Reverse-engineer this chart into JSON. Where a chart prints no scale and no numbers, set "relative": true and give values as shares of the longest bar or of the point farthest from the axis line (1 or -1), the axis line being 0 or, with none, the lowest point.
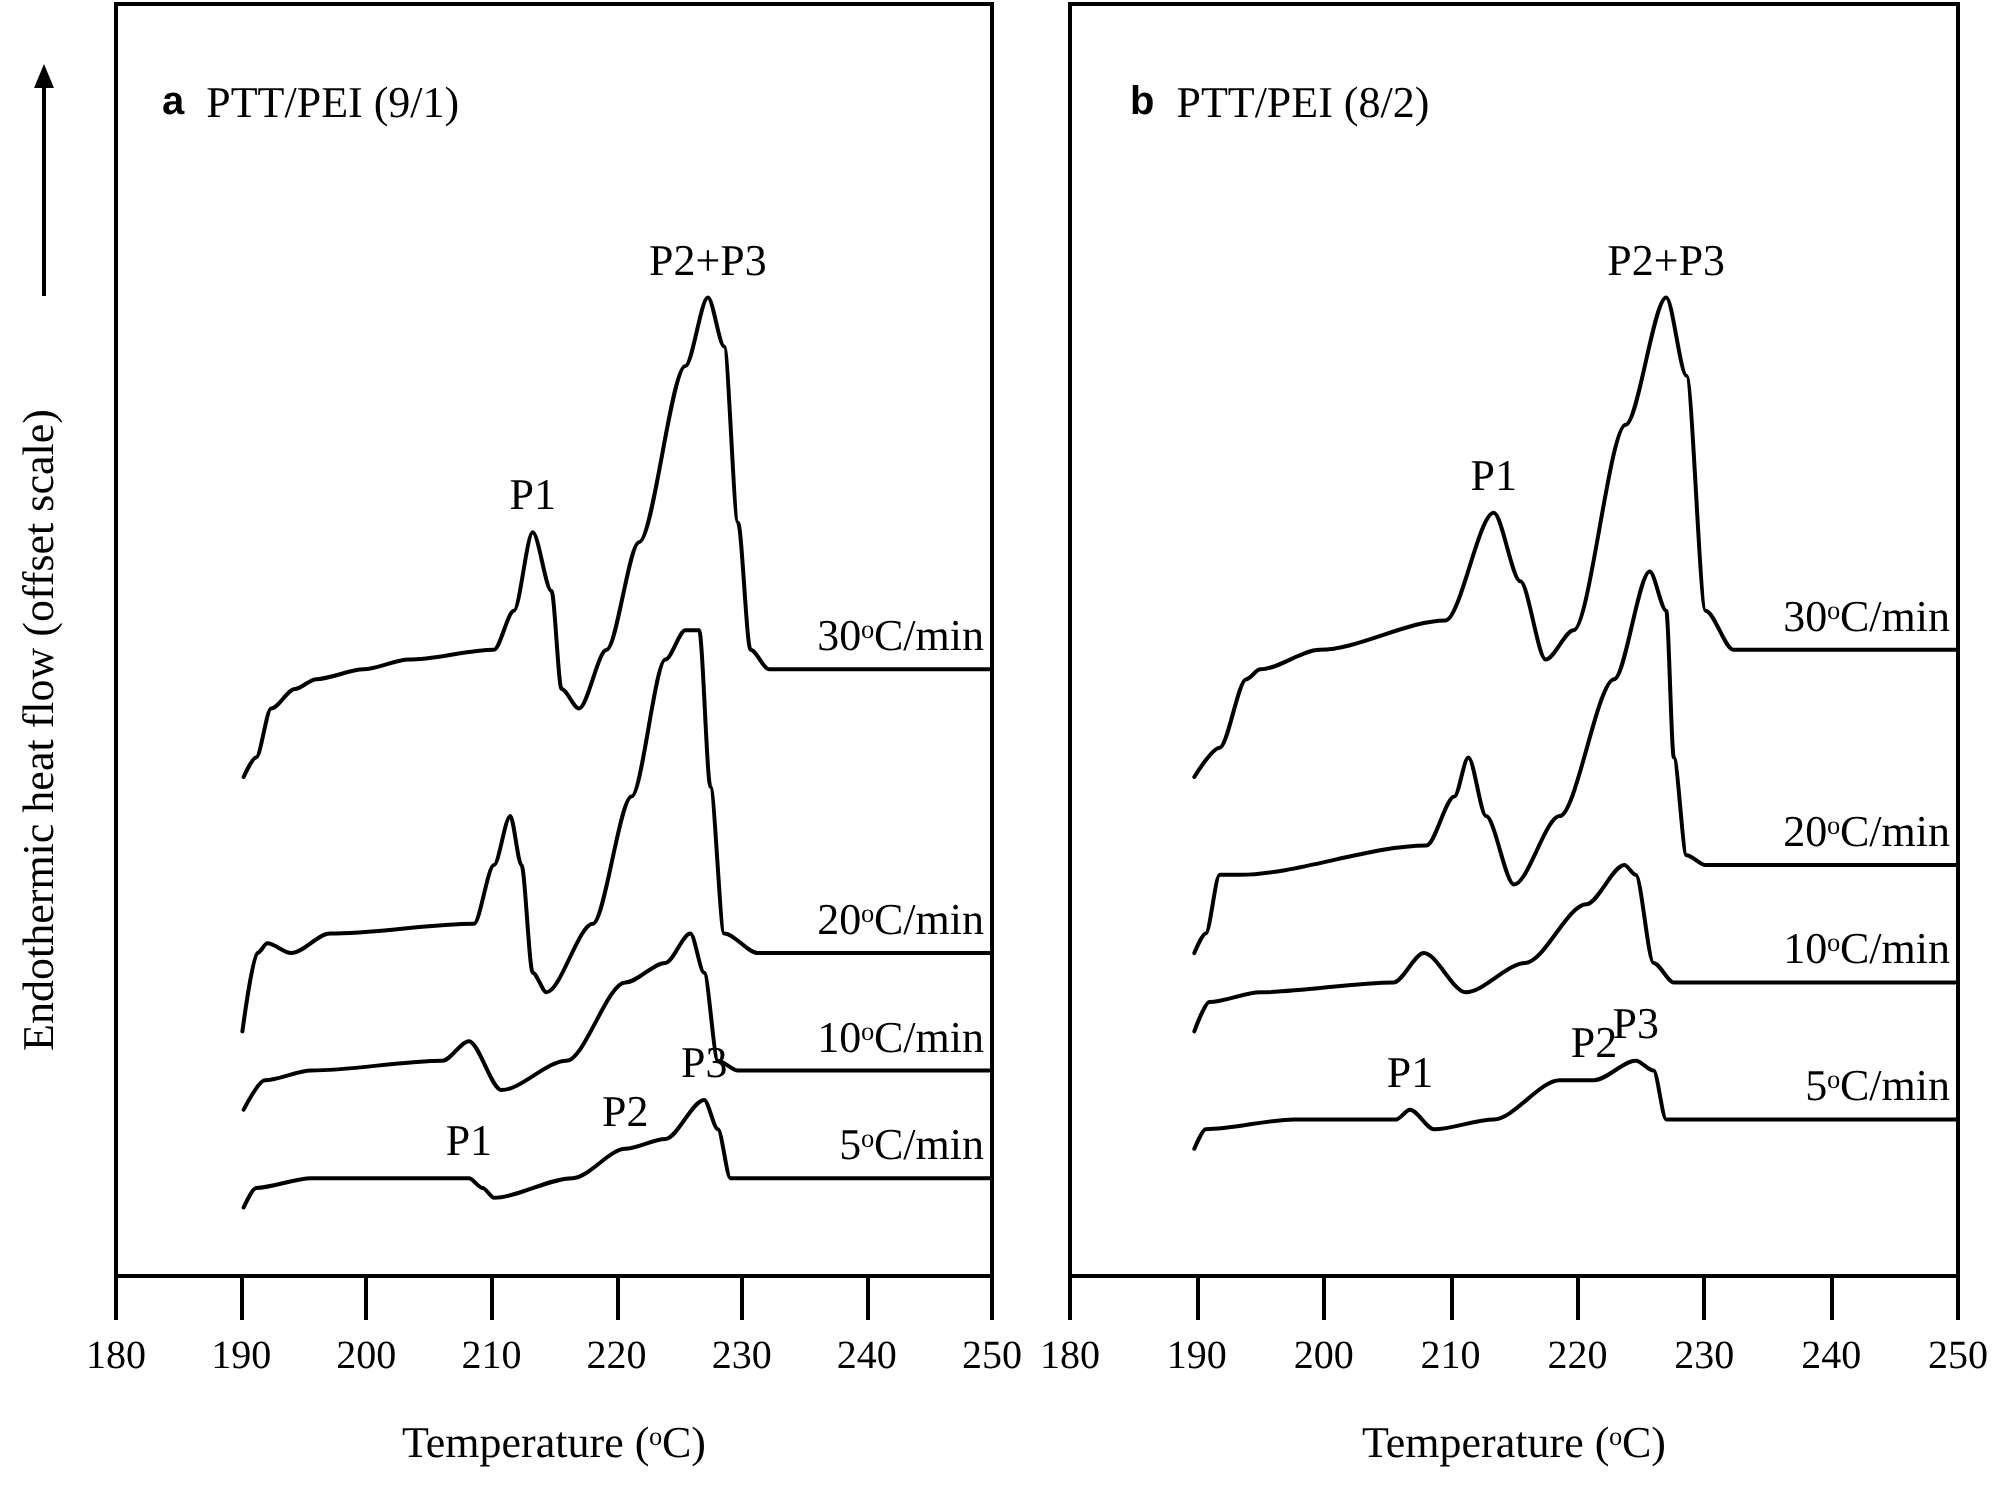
{
  "chart_data": [
    {
      "type": "line",
      "title": "a PTT/PEI (9/1)",
      "xlabel": "Temperature (ᵒC)",
      "ylabel": "Endothermic heat flow (offset scale)",
      "relative": true,
      "xlim": [
        180,
        250
      ],
      "xticks": [
        180,
        190,
        200,
        210,
        220,
        230,
        240,
        250
      ],
      "grid": false,
      "legend": false,
      "marker": "none",
      "line_style": "solid",
      "series": [
        {
          "name": "30ᵒC/min",
          "color": "#000000",
          "x": [
            190.2,
            191.2,
            192.4,
            194.3,
            196.0,
            199.8,
            203.4,
            210.2,
            211.8,
            213.3,
            214.8,
            215.6,
            217.0,
            219.2,
            221.8,
            225.5,
            227.3,
            228.6,
            229.7,
            230.7,
            232.2,
            249.8
          ],
          "values": [
            0.51,
            0.53,
            0.58,
            0.6,
            0.61,
            0.62,
            0.63,
            0.64,
            0.68,
            0.76,
            0.7,
            0.6,
            0.58,
            0.64,
            0.75,
            0.93,
            1.0,
            0.95,
            0.77,
            0.64,
            0.62,
            0.62
          ]
        },
        {
          "name": "20ᵒC/min",
          "color": "#000000",
          "x": [
            190.1,
            191.3,
            192.1,
            194.0,
            197.1,
            208.6,
            210.2,
            211.5,
            212.4,
            213.3,
            214.4,
            218.1,
            221.2,
            223.9,
            225.5,
            226.6,
            227.5,
            228.6,
            231.3,
            249.8
          ],
          "values": [
            0.25,
            0.33,
            0.34,
            0.33,
            0.35,
            0.36,
            0.42,
            0.47,
            0.42,
            0.31,
            0.29,
            0.36,
            0.49,
            0.63,
            0.66,
            0.66,
            0.5,
            0.35,
            0.33,
            0.33
          ]
        },
        {
          "name": "10ᵒC/min",
          "color": "#000000",
          "x": [
            190.2,
            191.9,
            195.6,
            206.1,
            208.2,
            210.8,
            216.0,
            220.7,
            223.9,
            225.9,
            227.0,
            228.1,
            229.7,
            249.8
          ],
          "values": [
            0.17,
            0.2,
            0.21,
            0.22,
            0.24,
            0.19,
            0.22,
            0.3,
            0.32,
            0.35,
            0.31,
            0.22,
            0.21,
            0.21
          ]
        },
        {
          "name": "5ᵒC/min",
          "color": "#000000",
          "x": [
            190.2,
            191.2,
            195.6,
            208.2,
            209.3,
            210.2,
            216.5,
            220.7,
            223.9,
            227.0,
            228.1,
            229.1,
            249.8
          ],
          "values": [
            0.07,
            0.09,
            0.1,
            0.1,
            0.09,
            0.08,
            0.1,
            0.13,
            0.14,
            0.18,
            0.15,
            0.1,
            0.1
          ]
        }
      ],
      "annotations": [
        {
          "text": "P1",
          "x": 213.3,
          "y": 0.76
        },
        {
          "text": "P2+P3",
          "x": 227.3,
          "y": 1.0
        },
        {
          "text": "P1",
          "x": 208.2,
          "y": 0.1
        },
        {
          "text": "P2",
          "x": 220.7,
          "y": 0.13
        },
        {
          "text": "P3",
          "x": 227.0,
          "y": 0.18
        }
      ]
    },
    {
      "type": "line",
      "title": "b PTT/PEI (8/2)",
      "xlabel": "Temperature (ᵒC)",
      "relative": true,
      "xlim": [
        180,
        250
      ],
      "xticks": [
        180,
        190,
        200,
        210,
        220,
        230,
        240,
        250
      ],
      "grid": false,
      "legend": false,
      "marker": "none",
      "line_style": "solid",
      "series": [
        {
          "name": "30ᵒC/min",
          "color": "#000000",
          "x": [
            189.8,
            191.8,
            193.9,
            195.0,
            199.7,
            209.6,
            213.4,
            215.5,
            217.5,
            219.7,
            223.8,
            227.0,
            228.6,
            230.1,
            232.3,
            250.0
          ],
          "values": [
            0.51,
            0.54,
            0.61,
            0.62,
            0.64,
            0.67,
            0.78,
            0.71,
            0.63,
            0.66,
            0.87,
            1.0,
            0.92,
            0.68,
            0.64,
            0.64
          ]
        },
        {
          "name": "20ᵒC/min",
          "color": "#000000",
          "x": [
            189.8,
            190.7,
            191.8,
            193.4,
            208.1,
            210.3,
            211.4,
            212.8,
            215.0,
            218.6,
            222.9,
            225.7,
            227.0,
            227.6,
            228.6,
            230.1,
            250.0
          ],
          "values": [
            0.33,
            0.35,
            0.41,
            0.41,
            0.44,
            0.49,
            0.53,
            0.47,
            0.4,
            0.47,
            0.61,
            0.72,
            0.68,
            0.53,
            0.43,
            0.42,
            0.42
          ]
        },
        {
          "name": "10ᵒC/min",
          "color": "#000000",
          "x": [
            189.8,
            191.0,
            195.0,
            205.5,
            207.9,
            211.2,
            215.9,
            220.7,
            223.7,
            224.6,
            226.0,
            227.6,
            250.0
          ],
          "values": [
            0.25,
            0.28,
            0.29,
            0.3,
            0.33,
            0.29,
            0.32,
            0.38,
            0.42,
            0.41,
            0.32,
            0.3,
            0.3
          ]
        },
        {
          "name": "5ᵒC/min",
          "color": "#000000",
          "x": [
            189.8,
            190.7,
            197.7,
            205.7,
            206.8,
            208.7,
            213.4,
            218.6,
            221.3,
            224.6,
            226.0,
            227.0,
            231.7,
            250.0
          ],
          "values": [
            0.13,
            0.15,
            0.16,
            0.16,
            0.17,
            0.15,
            0.16,
            0.2,
            0.2,
            0.22,
            0.21,
            0.16,
            0.16,
            0.16
          ]
        }
      ],
      "annotations": [
        {
          "text": "P1",
          "x": 213.4,
          "y": 0.78
        },
        {
          "text": "P2+P3",
          "x": 227.0,
          "y": 1.0
        },
        {
          "text": "P1",
          "x": 206.8,
          "y": 0.17
        },
        {
          "text": "P2",
          "x": 221.3,
          "y": 0.2
        },
        {
          "text": "P3",
          "x": 224.6,
          "y": 0.22
        }
      ]
    }
  ]
}
